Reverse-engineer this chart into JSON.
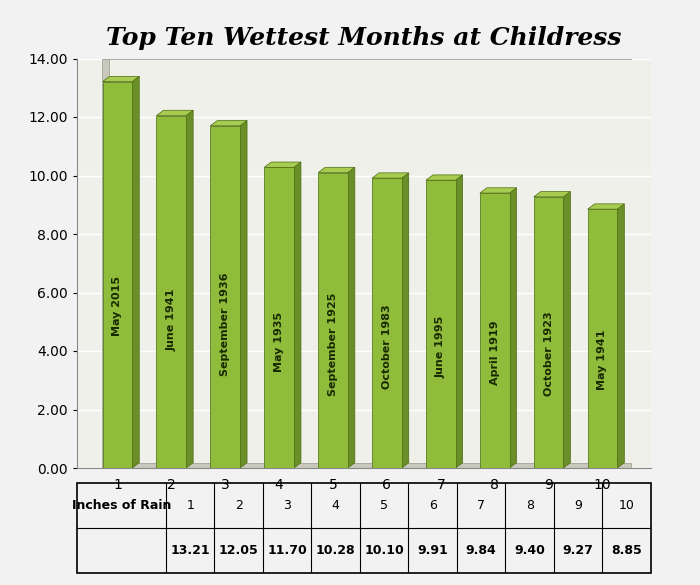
{
  "title": "Top Ten Wettest Months at Childress",
  "ranks": [
    1,
    2,
    3,
    4,
    5,
    6,
    7,
    8,
    9,
    10
  ],
  "labels": [
    "May 2015",
    "June 1941",
    "September 1936",
    "May 1935",
    "September 1925",
    "October 1983",
    "June 1995",
    "April 1919",
    "October 1923",
    "May 1941"
  ],
  "values": [
    13.21,
    12.05,
    11.7,
    10.28,
    10.1,
    9.91,
    9.84,
    9.4,
    9.27,
    8.85
  ],
  "bar_face_color": "#8fbc3a",
  "bar_right_color": "#6b8f28",
  "bar_top_color": "#a8cc50",
  "ylim": [
    0,
    14.0
  ],
  "yticks": [
    0.0,
    2.0,
    4.0,
    6.0,
    8.0,
    10.0,
    12.0,
    14.0
  ],
  "background_color": "#f2f2f2",
  "plot_bg_color": "#f0f0ea",
  "wall_color": "#c8c8bc",
  "grid_color": "#ffffff",
  "title_fontsize": 18,
  "tick_fontsize": 10,
  "table_label": "Inches of Rain",
  "table_bg_color": "#ffffff",
  "table_border_color": "#000000",
  "label_text_color": "#1a2a00"
}
